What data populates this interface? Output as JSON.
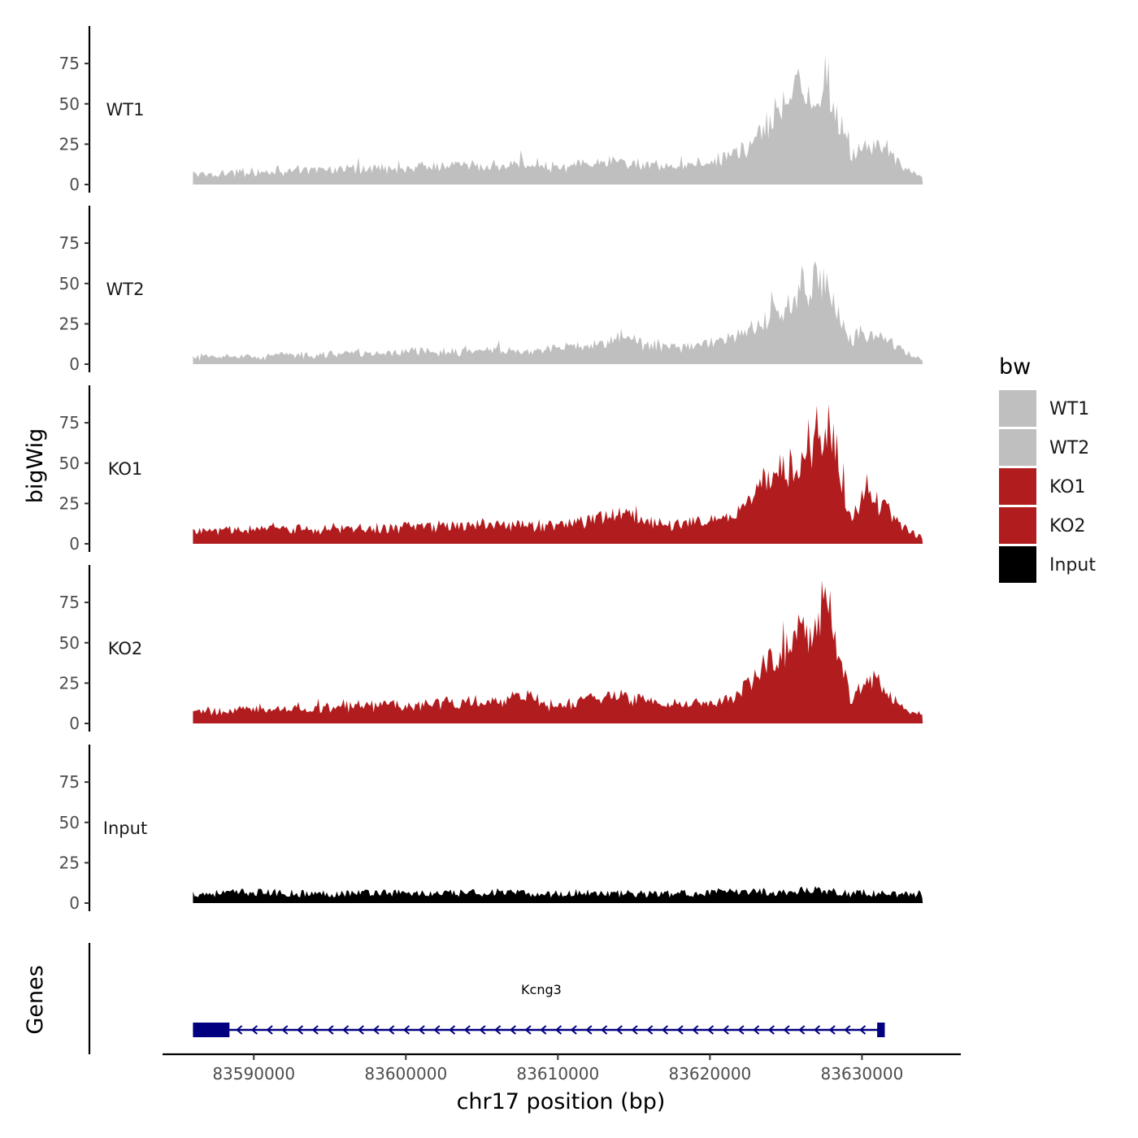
{
  "chart_data": {
    "type": "area",
    "ylabel": "bigWig",
    "xlabel": "chr17 position (bp)",
    "x_ticks": [
      "83590000",
      "83600000",
      "83610000",
      "83620000",
      "83630000"
    ],
    "x_tick_values": [
      83590000,
      83600000,
      83610000,
      83620000,
      83630000
    ],
    "xlim": [
      83584000,
      83636500
    ],
    "region": [
      83586000,
      83634000
    ],
    "y_ticks": [
      "0",
      "25",
      "50",
      "75"
    ],
    "y_tick_values": [
      0,
      25,
      50,
      75
    ],
    "ylim": [
      0,
      100
    ],
    "gene_panel_label": "Genes",
    "legend": {
      "title": "bw",
      "entries": [
        {
          "label": "WT1",
          "color": "#bfbfbf"
        },
        {
          "label": "WT2",
          "color": "#bfbfbf"
        },
        {
          "label": "KO1",
          "color": "#b11d1f"
        },
        {
          "label": "KO2",
          "color": "#b11d1f"
        },
        {
          "label": "Input",
          "color": "#000000"
        }
      ]
    },
    "tracks": [
      {
        "name": "WT1",
        "color": "#bfbfbf",
        "x": [
          83586000,
          83590000,
          83594000,
          83598000,
          83602000,
          83606000,
          83608000,
          83610000,
          83612000,
          83614000,
          83616000,
          83618000,
          83620000,
          83621500,
          83623000,
          83624000,
          83625000,
          83626000,
          83627000,
          83627700,
          83628500,
          83629300,
          83630000,
          83631000,
          83632000,
          83633000,
          83634000
        ],
        "y": [
          6,
          8,
          9,
          10,
          11,
          12,
          13,
          11,
          12,
          14,
          12,
          11,
          14,
          18,
          25,
          40,
          50,
          58,
          60,
          66,
          40,
          18,
          25,
          22,
          18,
          8,
          5
        ]
      },
      {
        "name": "WT2",
        "color": "#bfbfbf",
        "x": [
          83586000,
          83590000,
          83594000,
          83598000,
          83602000,
          83606000,
          83608000,
          83610000,
          83612000,
          83614000,
          83616000,
          83618000,
          83620000,
          83621500,
          83623000,
          83624000,
          83625000,
          83626000,
          83627000,
          83627700,
          83628500,
          83629300,
          83630000,
          83631000,
          83632000,
          83633000,
          83634000
        ],
        "y": [
          4,
          5,
          6,
          7,
          8,
          9,
          7,
          10,
          12,
          16,
          12,
          11,
          13,
          16,
          22,
          30,
          38,
          45,
          50,
          52,
          30,
          14,
          20,
          17,
          14,
          6,
          3
        ]
      },
      {
        "name": "KO1",
        "color": "#b11d1f",
        "x": [
          83586000,
          83590000,
          83594000,
          83598000,
          83602000,
          83606000,
          83608000,
          83610000,
          83612000,
          83614000,
          83616000,
          83618000,
          83620000,
          83621500,
          83623000,
          83624000,
          83625000,
          83626000,
          83627000,
          83627700,
          83628500,
          83629300,
          83630000,
          83631000,
          83632000,
          83633000,
          83634000
        ],
        "y": [
          8,
          9,
          9,
          10,
          11,
          12,
          11,
          12,
          15,
          20,
          13,
          12,
          14,
          18,
          30,
          45,
          48,
          52,
          62,
          78,
          42,
          15,
          28,
          26,
          18,
          8,
          4
        ]
      },
      {
        "name": "KO2",
        "color": "#b11d1f",
        "x": [
          83586000,
          83590000,
          83594000,
          83598000,
          83602000,
          83606000,
          83608000,
          83610000,
          83612000,
          83614000,
          83616000,
          83618000,
          83620000,
          83621500,
          83623000,
          83624000,
          83625000,
          83626000,
          83627000,
          83627700,
          83628500,
          83629300,
          83630000,
          83631000,
          83632000,
          83633000,
          83634000
        ],
        "y": [
          7,
          9,
          10,
          11,
          12,
          14,
          16,
          10,
          15,
          18,
          13,
          12,
          13,
          16,
          28,
          40,
          45,
          52,
          60,
          80,
          45,
          12,
          25,
          30,
          15,
          8,
          5
        ]
      },
      {
        "name": "Input",
        "color": "#000000",
        "x": [
          83586000,
          83590000,
          83594000,
          83598000,
          83602000,
          83606000,
          83608000,
          83610000,
          83612000,
          83614000,
          83616000,
          83618000,
          83620000,
          83621500,
          83623000,
          83624000,
          83625000,
          83626000,
          83627000,
          83627700,
          83628500,
          83629300,
          83630000,
          83631000,
          83632000,
          83633000,
          83634000
        ],
        "y": [
          5,
          6,
          5,
          6,
          5,
          6,
          5,
          5,
          6,
          5,
          5,
          5,
          6,
          6,
          7,
          6,
          6,
          7,
          8,
          7,
          6,
          5,
          6,
          5,
          5,
          5,
          5
        ]
      }
    ],
    "gene": {
      "name": "Kcng3",
      "strand": "-",
      "start": 83586000,
      "end": 83631500,
      "exons": [
        [
          83586000,
          83588400
        ],
        [
          83631000,
          83631500
        ]
      ],
      "color": "#000080"
    }
  }
}
